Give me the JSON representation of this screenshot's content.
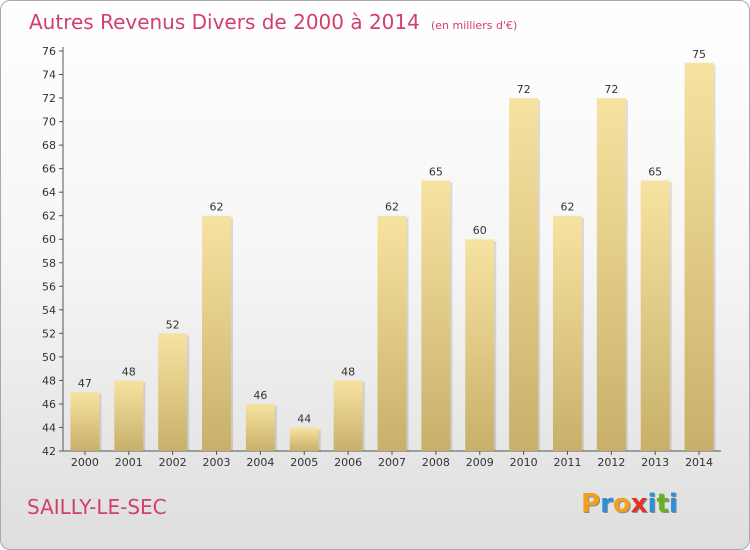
{
  "header": {
    "title": "Autres Revenus Divers de 2000 à 2014",
    "subtitle": "(en milliers d'€)"
  },
  "footer": {
    "commune": "SAILLY-LE-SEC",
    "brand_letters": [
      "P",
      "r",
      "o",
      "x",
      "i",
      "t",
      "i"
    ],
    "brand_colors": [
      "#f0a01e",
      "#2f8fd6",
      "#f0a01e",
      "#e0342a",
      "#2f8fd6",
      "#6ab023",
      "#2f8fd6"
    ]
  },
  "colors": {
    "accent": "#d2406a",
    "bar_top": "#f7e3a1",
    "bar_bottom": "#c8b06a",
    "text": "#333333",
    "grid": "#cccccc"
  },
  "chart_data": {
    "type": "bar",
    "title": "Autres Revenus Divers de 2000 à 2014",
    "subtitle": "(en milliers d'€)",
    "categories": [
      "2000",
      "2001",
      "2002",
      "2003",
      "2004",
      "2005",
      "2006",
      "2007",
      "2008",
      "2009",
      "2010",
      "2011",
      "2012",
      "2013",
      "2014"
    ],
    "values": [
      47,
      48,
      52,
      62,
      46,
      44,
      48,
      62,
      65,
      60,
      72,
      62,
      72,
      65,
      75
    ],
    "ylim": [
      42,
      76
    ],
    "yticks": [
      42,
      44,
      46,
      48,
      50,
      52,
      54,
      56,
      58,
      60,
      62,
      64,
      66,
      68,
      70,
      72,
      74,
      76
    ],
    "xlabel": "",
    "ylabel": "",
    "grid": false,
    "legend": "none"
  }
}
